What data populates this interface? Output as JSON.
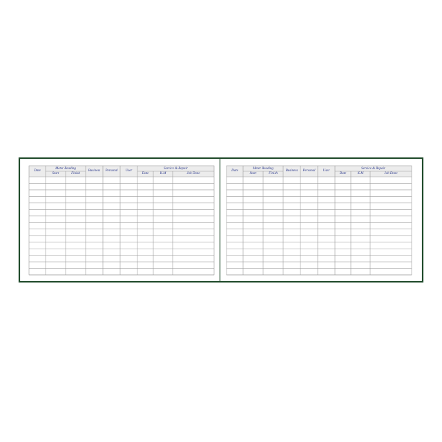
{
  "pages": [
    {
      "columns": {
        "date": "Date",
        "meter_reading": "Meter Reading",
        "start": "Start",
        "finish": "Finish",
        "business": "Business",
        "personal": "Personal",
        "user": "User",
        "service_repair": "Service & Repair",
        "service_date": "Date",
        "km": "K.M",
        "job_done": "Job Done"
      }
    },
    {
      "columns": {
        "date": "Date",
        "meter_reading": "Meter Reading",
        "start": "Start",
        "finish": "Finish",
        "business": "Business",
        "personal": "Personal",
        "user": "User",
        "service_repair": "Service & Repair",
        "service_date": "Date",
        "km": "K.M",
        "job_done": "Job Done"
      }
    }
  ]
}
